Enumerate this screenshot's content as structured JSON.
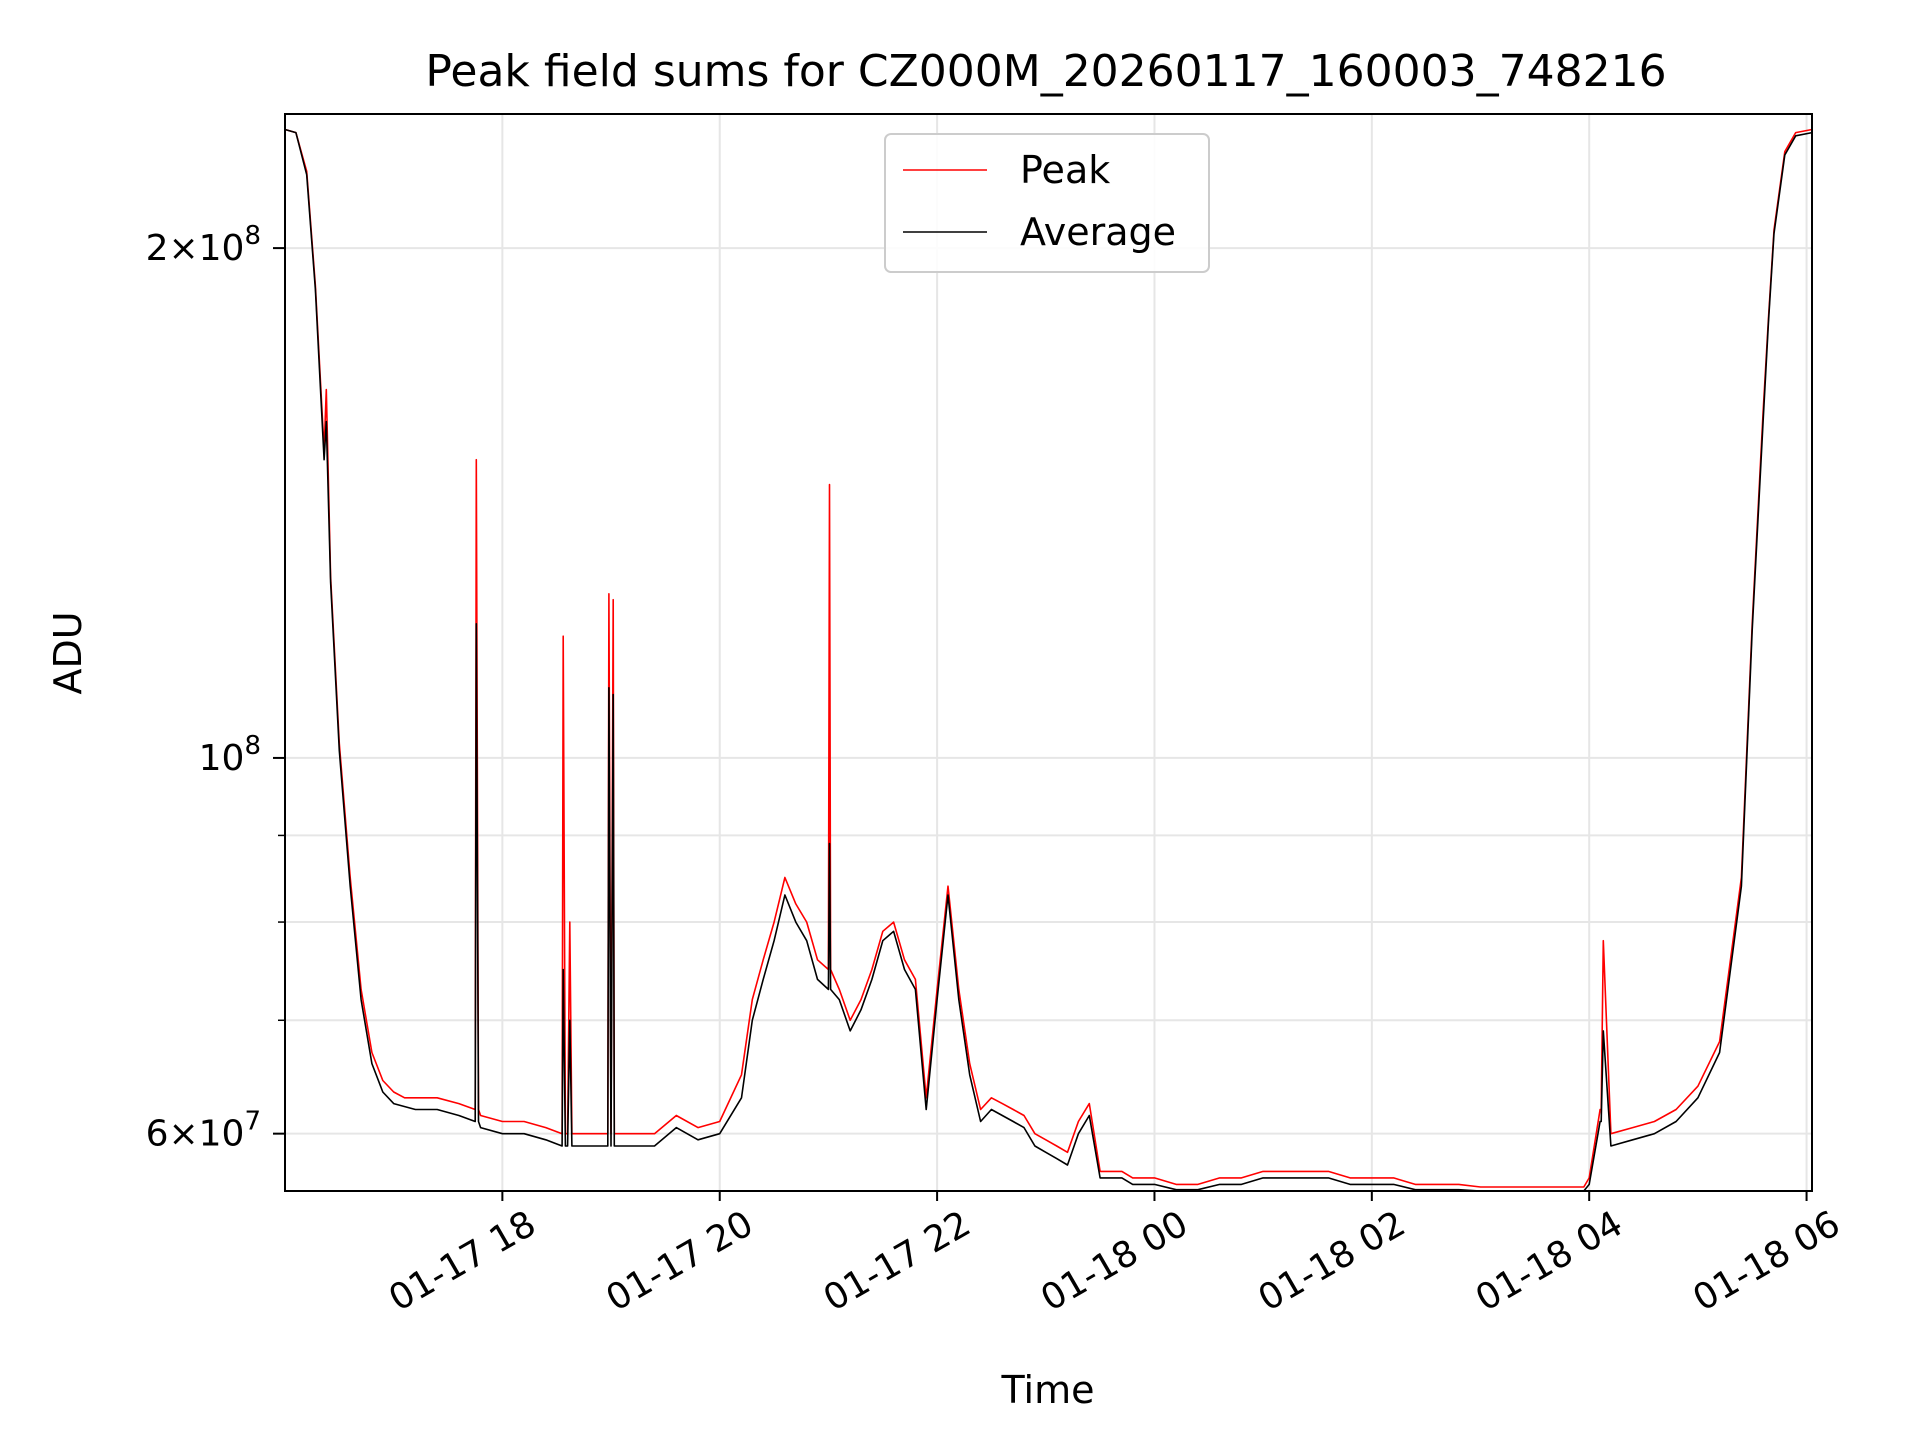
{
  "chart_data": {
    "type": "line",
    "title": "Peak field sums for CZ000M_20260117_160003_748216",
    "xlabel": "Time",
    "ylabel": "ADU",
    "yscale": "log",
    "ylim": [
      55500000,
      240000000
    ],
    "xlim_hours": [
      16.0,
      30.05
    ],
    "grid": true,
    "legend_position": "upper center",
    "x_ticks": [
      {
        "hour": 18,
        "label": "01-17 18"
      },
      {
        "hour": 20,
        "label": "01-17 20"
      },
      {
        "hour": 22,
        "label": "01-17 22"
      },
      {
        "hour": 24,
        "label": "01-18 00"
      },
      {
        "hour": 26,
        "label": "01-18 02"
      },
      {
        "hour": 28,
        "label": "01-18 04"
      },
      {
        "hour": 30,
        "label": "01-18 06"
      }
    ],
    "y_ticks_major": [
      {
        "value": 60000000,
        "mantissa": "6",
        "exponent": "7"
      },
      {
        "value": 100000000,
        "mantissa": "",
        "exponent": "8"
      },
      {
        "value": 200000000,
        "mantissa": "2",
        "exponent": "8"
      }
    ],
    "y_ticks_minor": [
      70000000,
      80000000,
      90000000
    ],
    "series": [
      {
        "name": "Peak",
        "color": "#ff0000",
        "x": [
          16.0,
          16.1,
          16.2,
          16.28,
          16.36,
          16.38,
          16.42,
          16.5,
          16.6,
          16.7,
          16.8,
          16.9,
          17.0,
          17.1,
          17.2,
          17.4,
          17.6,
          17.75,
          17.76,
          17.78,
          17.8,
          18.0,
          18.2,
          18.4,
          18.55,
          18.56,
          18.58,
          18.6,
          18.62,
          18.64,
          18.7,
          18.8,
          18.97,
          18.98,
          19.0,
          19.02,
          19.03,
          19.04,
          19.2,
          19.4,
          19.6,
          19.8,
          20.0,
          20.2,
          20.3,
          20.4,
          20.5,
          20.6,
          20.7,
          20.8,
          20.9,
          21.0,
          21.01,
          21.02,
          21.1,
          21.2,
          21.3,
          21.4,
          21.5,
          21.6,
          21.7,
          21.8,
          21.9,
          22.0,
          22.1,
          22.2,
          22.3,
          22.4,
          22.5,
          22.6,
          22.7,
          22.8,
          22.9,
          23.0,
          23.1,
          23.2,
          23.3,
          23.4,
          23.5,
          23.6,
          23.7,
          23.8,
          24.0,
          24.2,
          24.4,
          24.6,
          24.8,
          25.0,
          25.2,
          25.4,
          25.6,
          25.8,
          26.0,
          26.2,
          26.4,
          26.6,
          26.8,
          27.0,
          27.2,
          27.4,
          27.6,
          27.8,
          27.95,
          28.0,
          28.1,
          28.11,
          28.13,
          28.2,
          28.4,
          28.6,
          28.8,
          29.0,
          29.2,
          29.4,
          29.5,
          29.6,
          29.65,
          29.7,
          29.8,
          29.9,
          30.05
        ],
        "y": [
          235000000,
          234000000,
          222000000,
          190000000,
          152000000,
          165000000,
          128000000,
          102000000,
          85000000,
          73000000,
          67000000,
          64500000,
          63500000,
          63000000,
          63000000,
          63000000,
          62500000,
          62000000,
          150000000,
          62000000,
          61500000,
          61000000,
          61000000,
          60500000,
          60000000,
          118000000,
          60000000,
          60000000,
          80000000,
          60000000,
          60000000,
          60000000,
          60000000,
          125000000,
          60000000,
          124000000,
          60000000,
          60000000,
          60000000,
          60000000,
          61500000,
          60500000,
          61000000,
          65000000,
          72000000,
          76000000,
          80000000,
          85000000,
          82000000,
          80000000,
          76000000,
          75000000,
          145000000,
          75000000,
          73000000,
          70000000,
          72000000,
          75000000,
          79000000,
          80000000,
          76000000,
          74000000,
          63000000,
          73000000,
          84000000,
          73000000,
          66000000,
          62000000,
          63000000,
          62500000,
          62000000,
          61500000,
          60000000,
          59500000,
          59000000,
          58500000,
          61000000,
          62500000,
          57000000,
          57000000,
          57000000,
          56500000,
          56500000,
          56000000,
          56000000,
          56500000,
          56500000,
          57000000,
          57000000,
          57000000,
          57000000,
          56500000,
          56500000,
          56500000,
          56000000,
          56000000,
          56000000,
          55800000,
          55800000,
          55800000,
          55800000,
          55800000,
          55800000,
          56500000,
          62000000,
          62000000,
          78000000,
          60000000,
          60500000,
          61000000,
          62000000,
          64000000,
          68000000,
          85000000,
          120000000,
          160000000,
          182000000,
          205000000,
          228000000,
          234000000,
          235000000
        ]
      },
      {
        "name": "Average",
        "color": "#000000",
        "x": [
          16.0,
          16.1,
          16.2,
          16.28,
          16.36,
          16.38,
          16.42,
          16.5,
          16.6,
          16.7,
          16.8,
          16.9,
          17.0,
          17.2,
          17.4,
          17.6,
          17.75,
          17.76,
          17.78,
          17.8,
          18.0,
          18.2,
          18.4,
          18.55,
          18.56,
          18.58,
          18.6,
          18.62,
          18.64,
          18.7,
          18.8,
          18.97,
          18.98,
          19.0,
          19.02,
          19.03,
          19.04,
          19.2,
          19.4,
          19.6,
          19.8,
          20.0,
          20.2,
          20.3,
          20.4,
          20.5,
          20.6,
          20.7,
          20.8,
          20.9,
          21.0,
          21.01,
          21.02,
          21.1,
          21.2,
          21.3,
          21.4,
          21.5,
          21.6,
          21.7,
          21.8,
          21.9,
          22.0,
          22.1,
          22.2,
          22.3,
          22.4,
          22.5,
          22.6,
          22.7,
          22.8,
          22.9,
          23.0,
          23.1,
          23.2,
          23.3,
          23.4,
          23.5,
          23.6,
          23.7,
          23.8,
          24.0,
          24.2,
          24.4,
          24.6,
          24.8,
          25.0,
          25.2,
          25.4,
          25.6,
          25.8,
          26.0,
          26.2,
          26.4,
          26.6,
          26.8,
          27.0,
          27.2,
          27.4,
          27.6,
          27.8,
          27.95,
          28.0,
          28.1,
          28.11,
          28.13,
          28.2,
          28.4,
          28.6,
          28.8,
          29.0,
          29.2,
          29.4,
          29.5,
          29.6,
          29.65,
          29.7,
          29.8,
          29.9,
          30.05
        ],
        "y": [
          235000000,
          234000000,
          221000000,
          189000000,
          150000000,
          158000000,
          127000000,
          101000000,
          84000000,
          72000000,
          66000000,
          63500000,
          62500000,
          62000000,
          62000000,
          61500000,
          61000000,
          120000000,
          61000000,
          60500000,
          60000000,
          60000000,
          59500000,
          59000000,
          75000000,
          59000000,
          59000000,
          70000000,
          59000000,
          59000000,
          59000000,
          59000000,
          110000000,
          59000000,
          109000000,
          59000000,
          59000000,
          59000000,
          59000000,
          60500000,
          59500000,
          60000000,
          63000000,
          70000000,
          74000000,
          78000000,
          83000000,
          80000000,
          78000000,
          74000000,
          73000000,
          89000000,
          73000000,
          72000000,
          69000000,
          71000000,
          74000000,
          78000000,
          79000000,
          75000000,
          73000000,
          62000000,
          72000000,
          83000000,
          72000000,
          65000000,
          61000000,
          62000000,
          61500000,
          61000000,
          60500000,
          59000000,
          58500000,
          58000000,
          57500000,
          60000000,
          61500000,
          56500000,
          56500000,
          56500000,
          56000000,
          56000000,
          55600000,
          55600000,
          56000000,
          56000000,
          56500000,
          56500000,
          56500000,
          56500000,
          56000000,
          56000000,
          56000000,
          55600000,
          55600000,
          55600000,
          55500000,
          55500000,
          55500000,
          55500000,
          55500000,
          55500000,
          56000000,
          61000000,
          61000000,
          69000000,
          59000000,
          59500000,
          60000000,
          61000000,
          63000000,
          67000000,
          84000000,
          119000000,
          158000000,
          181000000,
          204000000,
          227000000,
          233000000,
          234000000
        ]
      }
    ]
  }
}
